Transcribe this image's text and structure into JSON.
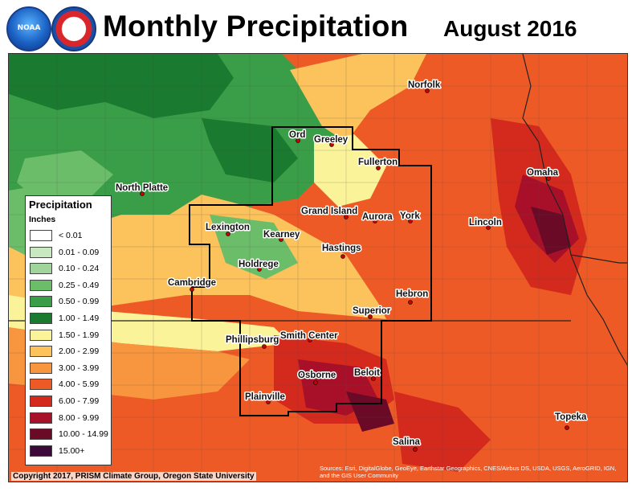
{
  "header": {
    "title": "Monthly Precipitation",
    "period": "August 2016",
    "logos": [
      "NOAA",
      "National Weather Service"
    ]
  },
  "legend": {
    "title": "Precipitation",
    "units": "Inches",
    "items": [
      {
        "label": "< 0.01",
        "color": "#ffffff"
      },
      {
        "label": "0.01 - 0.09",
        "color": "#c8e8c0"
      },
      {
        "label": "0.10 - 0.24",
        "color": "#a0d49a"
      },
      {
        "label": "0.25 - 0.49",
        "color": "#6cbd6a"
      },
      {
        "label": "0.50 - 0.99",
        "color": "#3a9e48"
      },
      {
        "label": "1.00 - 1.49",
        "color": "#1a7a30"
      },
      {
        "label": "1.50 - 1.99",
        "color": "#fbf39a"
      },
      {
        "label": "2.00 - 2.99",
        "color": "#fcc25c"
      },
      {
        "label": "3.00 - 3.99",
        "color": "#f7963e"
      },
      {
        "label": "4.00 - 5.99",
        "color": "#ee5a26"
      },
      {
        "label": "6.00 - 7.99",
        "color": "#d42a1e"
      },
      {
        "label": "8.00 - 9.99",
        "color": "#a8102a"
      },
      {
        "label": "10.00 - 14.99",
        "color": "#6a0a26"
      },
      {
        "label": "15.00+",
        "color": "#3c0a3a"
      }
    ]
  },
  "cities": [
    {
      "name": "Norfolk"
    },
    {
      "name": "Ord"
    },
    {
      "name": "Greeley"
    },
    {
      "name": "Fullerton"
    },
    {
      "name": "Omaha"
    },
    {
      "name": "North Platte"
    },
    {
      "name": "Grand Island"
    },
    {
      "name": "Aurora"
    },
    {
      "name": "York"
    },
    {
      "name": "Lincoln"
    },
    {
      "name": "Lexington"
    },
    {
      "name": "Kearney"
    },
    {
      "name": "Hastings"
    },
    {
      "name": "Holdrege"
    },
    {
      "name": "Cambridge"
    },
    {
      "name": "Hebron"
    },
    {
      "name": "Superior"
    },
    {
      "name": "Phillipsburg"
    },
    {
      "name": "Smith Center"
    },
    {
      "name": "Osborne"
    },
    {
      "name": "Beloit"
    },
    {
      "name": "Plainville"
    },
    {
      "name": "Topeka"
    },
    {
      "name": "Salina"
    }
  ],
  "footer": {
    "copyright": "Copyright 2017, PRISM Climate Group, Oregon State University",
    "sources": "Sources: Esri, DigitalGlobe, GeoEye, Earthstar Geographics, CNES/Airbus DS, USDA, USGS, AeroGRID, IGN, and the GIS User Community"
  }
}
